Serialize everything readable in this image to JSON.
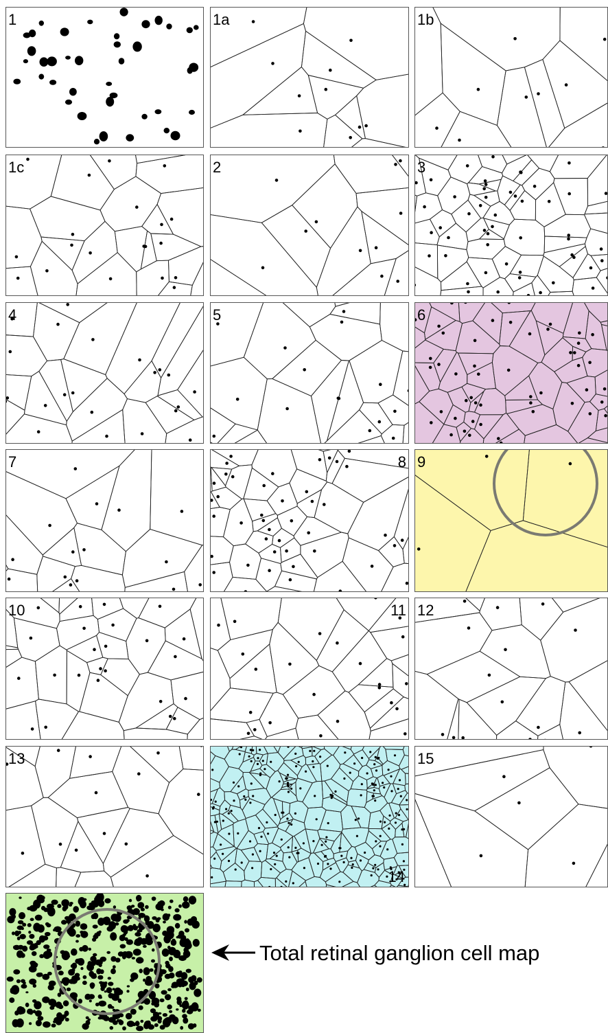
{
  "caption": "Total retinal ganglion cell map",
  "panels": [
    {
      "id": "1",
      "label": "1",
      "label_pos": "top-left",
      "kind": "cells",
      "fill": "#ffffff"
    },
    {
      "id": "1a",
      "label": "1a",
      "label_pos": "top-left",
      "kind": "voronoi",
      "fill": "#ffffff"
    },
    {
      "id": "1b",
      "label": "1b",
      "label_pos": "top-left",
      "kind": "voronoi",
      "fill": "#ffffff"
    },
    {
      "id": "1c",
      "label": "1c",
      "label_pos": "top-left",
      "kind": "voronoi",
      "fill": "#ffffff"
    },
    {
      "id": "2",
      "label": "2",
      "label_pos": "top-left",
      "kind": "voronoi",
      "fill": "#ffffff"
    },
    {
      "id": "3",
      "label": "3",
      "label_pos": "top-left",
      "kind": "voronoi",
      "fill": "#ffffff"
    },
    {
      "id": "4",
      "label": "4",
      "label_pos": "top-left",
      "kind": "voronoi",
      "fill": "#ffffff"
    },
    {
      "id": "5",
      "label": "5",
      "label_pos": "top-left",
      "kind": "voronoi",
      "fill": "#ffffff"
    },
    {
      "id": "6",
      "label": "6",
      "label_pos": "top-left",
      "kind": "voronoi",
      "fill": "#e4c6e0"
    },
    {
      "id": "7",
      "label": "7",
      "label_pos": "top-left",
      "kind": "voronoi",
      "fill": "#ffffff"
    },
    {
      "id": "8",
      "label": "8",
      "label_pos": "top-right",
      "kind": "voronoi",
      "fill": "#ffffff"
    },
    {
      "id": "9",
      "label": "9",
      "label_pos": "top-left",
      "kind": "voronoi",
      "fill": "#fdf6ac",
      "circle": true
    },
    {
      "id": "10",
      "label": "10",
      "label_pos": "top-left",
      "kind": "voronoi",
      "fill": "#ffffff"
    },
    {
      "id": "11",
      "label": "11",
      "label_pos": "top-right",
      "kind": "voronoi",
      "fill": "#ffffff"
    },
    {
      "id": "12",
      "label": "12",
      "label_pos": "top-left",
      "kind": "voronoi",
      "fill": "#ffffff"
    },
    {
      "id": "13",
      "label": "13",
      "label_pos": "top-left",
      "kind": "voronoi",
      "fill": "#ffffff"
    },
    {
      "id": "14",
      "label": "14",
      "label_pos": "bottom-right",
      "kind": "voronoi",
      "fill": "#c1f0f2"
    },
    {
      "id": "15",
      "label": "15",
      "label_pos": "top-left",
      "kind": "voronoi",
      "fill": "#ffffff"
    },
    {
      "id": "total",
      "label": "",
      "label_pos": "",
      "kind": "cells",
      "fill": "#c7f0a8",
      "circle": true
    }
  ],
  "colors": {
    "panel_border": "#555555",
    "voronoi_edge": "#222222",
    "point": "#000000",
    "circle": "#7a7a72"
  }
}
